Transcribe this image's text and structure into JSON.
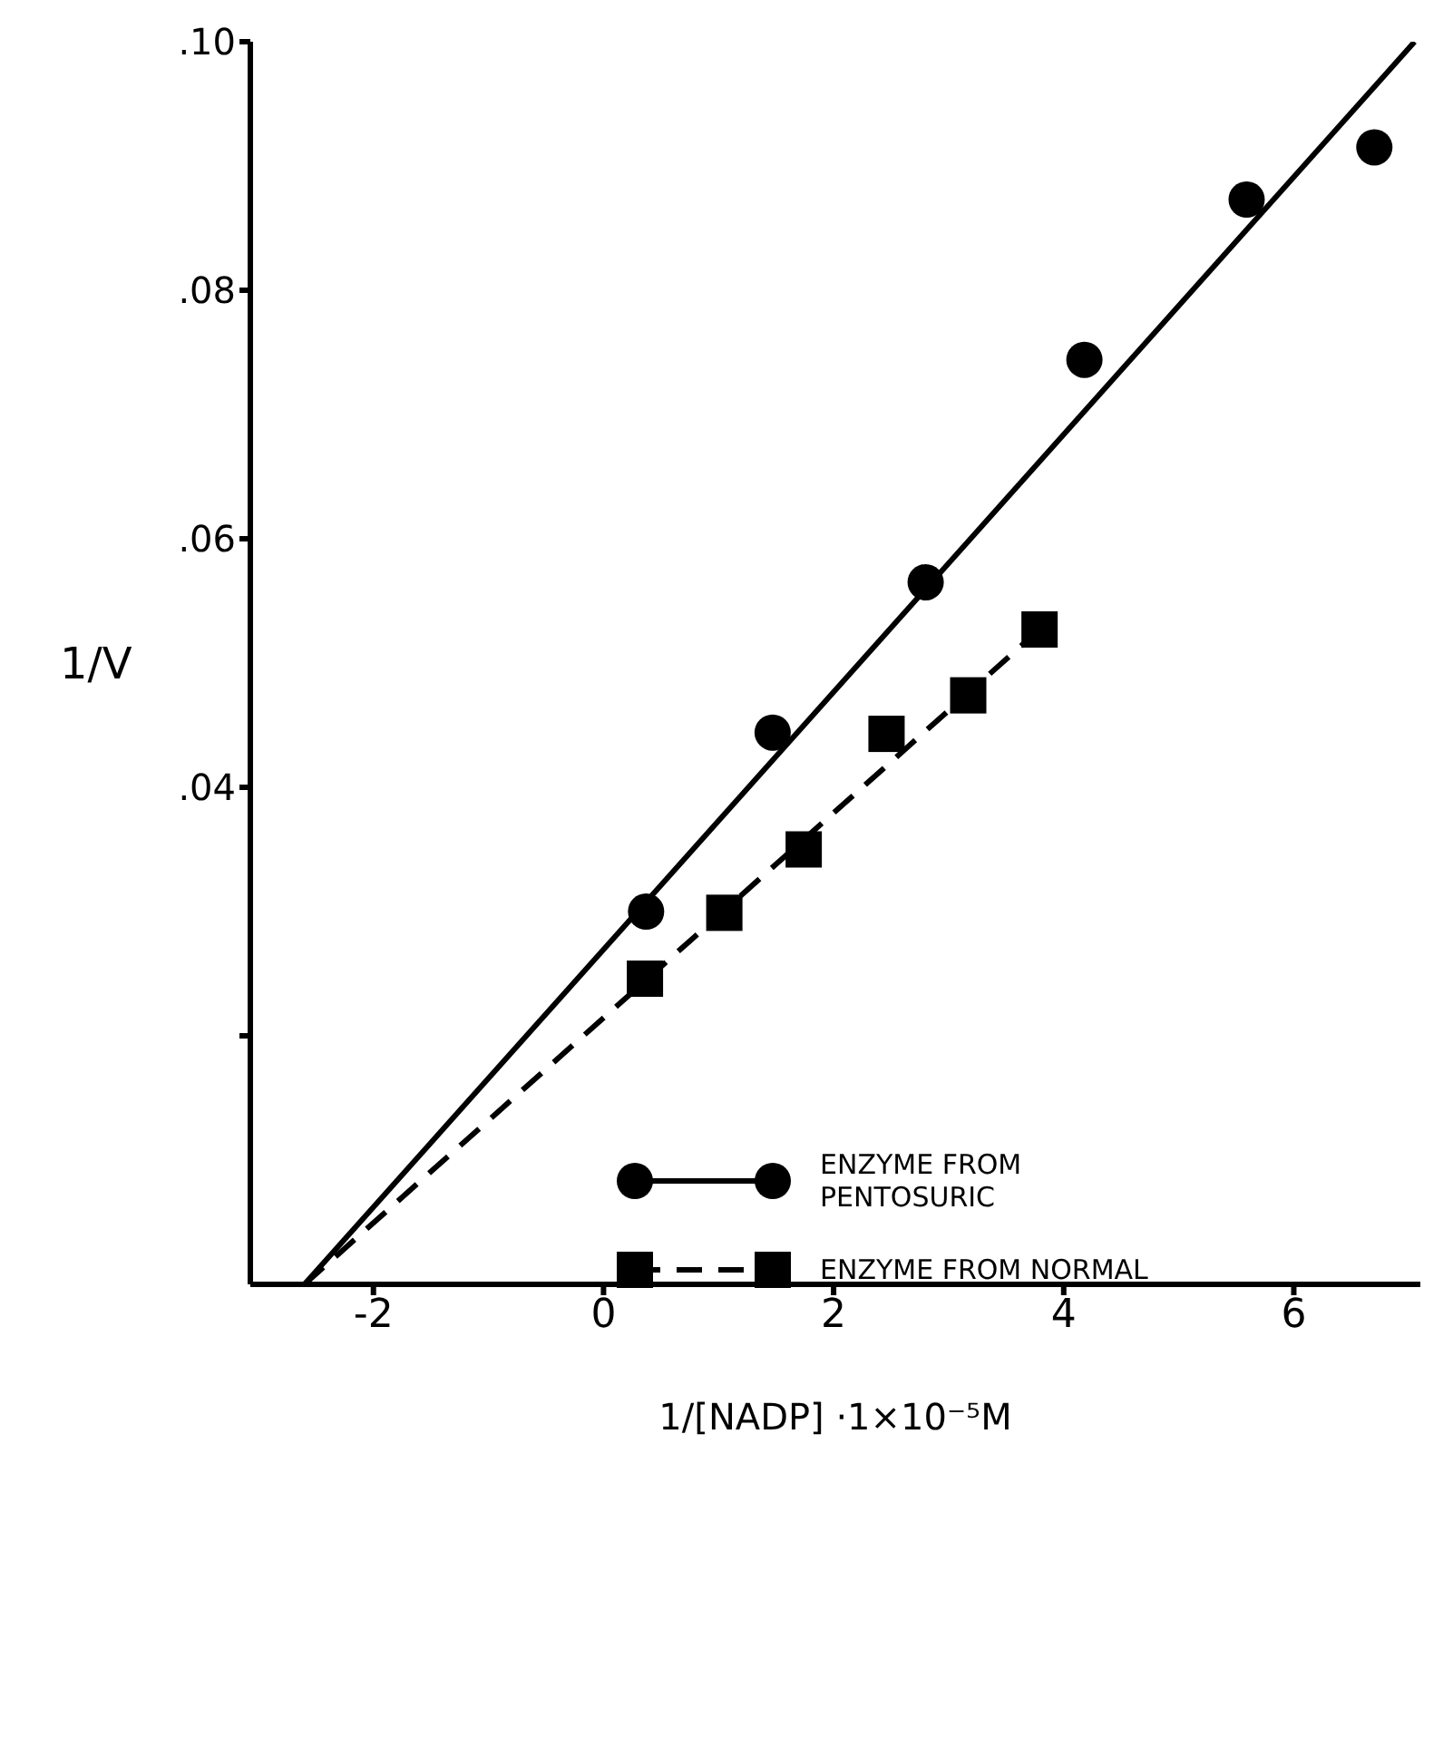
{
  "chart_data": {
    "type": "scatter",
    "xlabel": "1/[NADP] ·1×10⁻⁵M",
    "ylabel": "1/V",
    "xlim": [
      -3.07,
      7.1
    ],
    "xticks": [
      -2,
      0,
      2,
      4,
      6
    ],
    "ylim": [
      0,
      0.1
    ],
    "yticks": [
      {
        "value": 0.02,
        "label": null
      },
      {
        "value": 0.04,
        "label": ".04"
      },
      {
        "value": 0.06,
        "label": ".06"
      },
      {
        "value": 0.08,
        "label": ".08"
      },
      {
        "value": 0.1,
        "label": ".10"
      }
    ],
    "grid": false,
    "legend": "bottom right",
    "series": [
      {
        "name": "ENZYME FROM PENTOSURIC",
        "marker": "circle",
        "color": "#000000",
        "x": [
          0.37,
          1.47,
          2.8,
          4.18,
          5.59,
          6.7
        ],
        "values": [
          0.03,
          0.0444,
          0.0565,
          0.0744,
          0.0873,
          0.0915
        ]
      },
      {
        "name": "ENZYME FROM NORMAL",
        "marker": "square",
        "color": "#000000",
        "x": [
          0.36,
          1.05,
          1.74,
          2.46,
          3.17,
          3.79
        ],
        "values": [
          0.0246,
          0.0299,
          0.035,
          0.0443,
          0.0474,
          0.0527
        ]
      },
      {
        "type": "line",
        "line_style": "solid",
        "color": "#000000",
        "x": [
          -2.6,
          7.05
        ],
        "values": [
          0,
          0.1
        ]
      },
      {
        "type": "line",
        "line_style": "dashed",
        "color": "#000000",
        "x": [
          -2.6,
          3.79
        ],
        "values": [
          0,
          0.0527
        ]
      }
    ]
  }
}
